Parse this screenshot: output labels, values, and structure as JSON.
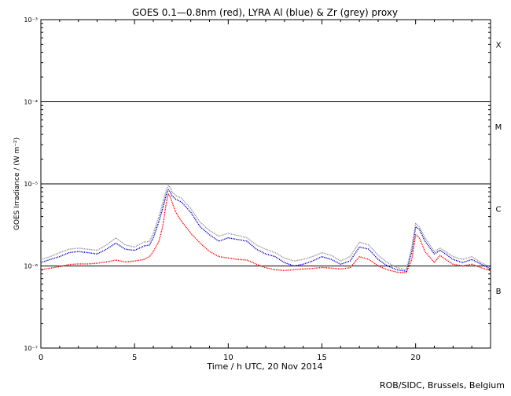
{
  "chart_data": {
    "type": "line",
    "title": "GOES 0.1—0.8nm (red), LYRA Al (blue) & Zr (grey) proxy",
    "xlabel": "Time / h UTC, 20 Nov 2014",
    "ylabel": "GOES Irradiance / (W m⁻²)",
    "xlim": [
      0,
      24
    ],
    "ylim": [
      1e-07,
      0.001
    ],
    "yscale": "log",
    "x_ticks": [
      0,
      5,
      10,
      15,
      20
    ],
    "y_ticks": [
      {
        "value": 1e-07,
        "label": "10⁻⁷"
      },
      {
        "value": 1e-06,
        "label": "10⁻⁶"
      },
      {
        "value": 1e-05,
        "label": "10⁻⁵"
      },
      {
        "value": 0.0001,
        "label": "10⁻⁴"
      },
      {
        "value": 0.001,
        "label": "10⁻³"
      }
    ],
    "class_lines": [
      1e-06,
      1e-05,
      0.0001
    ],
    "class_labels": [
      {
        "label": "X",
        "y": 0.0005
      },
      {
        "label": "M",
        "y": 5e-05
      },
      {
        "label": "C",
        "y": 5e-06
      },
      {
        "label": "B",
        "y": 5e-07
      }
    ],
    "series": [
      {
        "color": "#ff0000",
        "x": [
          0,
          0.5,
          1,
          1.5,
          2,
          2.5,
          3,
          3.5,
          4,
          4.5,
          5,
          5.5,
          5.8,
          6,
          6.3,
          6.5,
          6.7,
          6.8,
          6.9,
          7,
          7.2,
          7.5,
          8,
          8.5,
          9,
          9.5,
          10,
          10.5,
          11,
          11.5,
          12,
          12.5,
          13,
          13.5,
          14,
          14.5,
          15,
          15.5,
          16,
          16.5,
          17,
          17.5,
          18,
          18.5,
          19,
          19.5,
          19.8,
          20,
          20.2,
          20.5,
          21,
          21.3,
          21.6,
          22,
          22.5,
          23,
          23.5,
          24
        ],
        "y": [
          9e-07,
          9.4e-07,
          9.8e-07,
          1.04e-06,
          1.06e-06,
          1.06e-06,
          1.08e-06,
          1.12e-06,
          1.18e-06,
          1.12e-06,
          1.15e-06,
          1.2e-06,
          1.3e-06,
          1.5e-06,
          2e-06,
          3e-06,
          6e-06,
          7.5e-06,
          7e-06,
          6e-06,
          4.5e-06,
          3.5e-06,
          2.5e-06,
          1.9e-06,
          1.5e-06,
          1.3e-06,
          1.25e-06,
          1.2e-06,
          1.18e-06,
          1.05e-06,
          9.5e-07,
          9e-07,
          8.8e-07,
          9e-07,
          9.2e-07,
          9.3e-07,
          9.6e-07,
          9.4e-07,
          9.2e-07,
          9.5e-07,
          1.3e-06,
          1.2e-06,
          1e-06,
          9e-07,
          8.4e-07,
          8.3e-07,
          1.2e-06,
          2.4e-06,
          2.2e-06,
          1.5e-06,
          1.1e-06,
          1.35e-06,
          1.2e-06,
          1.05e-06,
          1e-06,
          1.05e-06,
          9.5e-07,
          8.8e-07
        ]
      },
      {
        "color": "#0000cc",
        "x": [
          0,
          0.5,
          1,
          1.5,
          2,
          2.5,
          3,
          3.5,
          4,
          4.5,
          5,
          5.5,
          5.8,
          6,
          6.3,
          6.5,
          6.7,
          6.8,
          6.9,
          7,
          7.2,
          7.5,
          8,
          8.5,
          9,
          9.5,
          10,
          10.5,
          11,
          11.5,
          12,
          12.5,
          13,
          13.5,
          14,
          14.5,
          15,
          15.5,
          16,
          16.5,
          17,
          17.5,
          18,
          18.5,
          19,
          19.5,
          19.8,
          20,
          20.2,
          20.5,
          21,
          21.3,
          21.6,
          22,
          22.5,
          23,
          23.5,
          24
        ],
        "y": [
          1.1e-06,
          1.2e-06,
          1.3e-06,
          1.45e-06,
          1.5e-06,
          1.45e-06,
          1.4e-06,
          1.6e-06,
          1.9e-06,
          1.6e-06,
          1.55e-06,
          1.75e-06,
          1.8e-06,
          2.2e-06,
          3.5e-06,
          5e-06,
          7.5e-06,
          8.5e-06,
          8e-06,
          7.2e-06,
          6.5e-06,
          6e-06,
          4.5e-06,
          3e-06,
          2.4e-06,
          2e-06,
          2.2e-06,
          2.1e-06,
          2e-06,
          1.6e-06,
          1.4e-06,
          1.3e-06,
          1.1e-06,
          1e-06,
          1.05e-06,
          1.15e-06,
          1.3e-06,
          1.2e-06,
          1.05e-06,
          1.15e-06,
          1.7e-06,
          1.6e-06,
          1.2e-06,
          1e-06,
          9e-07,
          8.6e-07,
          1.5e-06,
          3e-06,
          2.8e-06,
          2e-06,
          1.4e-06,
          1.55e-06,
          1.4e-06,
          1.2e-06,
          1.1e-06,
          1.2e-06,
          1.05e-06,
          9.2e-07
        ]
      },
      {
        "color": "#909090",
        "x": [
          0,
          0.5,
          1,
          1.5,
          2,
          2.5,
          3,
          3.5,
          4,
          4.5,
          5,
          5.5,
          5.8,
          6,
          6.3,
          6.5,
          6.7,
          6.8,
          6.9,
          7,
          7.2,
          7.5,
          8,
          8.5,
          9,
          9.5,
          10,
          10.5,
          11,
          11.5,
          12,
          12.5,
          13,
          13.5,
          14,
          14.5,
          15,
          15.5,
          16,
          16.5,
          17,
          17.5,
          18,
          18.5,
          19,
          19.5,
          19.8,
          20,
          20.2,
          20.5,
          21,
          21.3,
          21.6,
          22,
          22.5,
          23,
          23.5,
          24
        ],
        "y": [
          1.2e-06,
          1.3e-06,
          1.45e-06,
          1.6e-06,
          1.65e-06,
          1.6e-06,
          1.55e-06,
          1.8e-06,
          2.2e-06,
          1.8e-06,
          1.7e-06,
          1.95e-06,
          2e-06,
          2.5e-06,
          4e-06,
          5.8e-06,
          8.5e-06,
          9.5e-06,
          9e-06,
          8e-06,
          7.2e-06,
          6.7e-06,
          5e-06,
          3.4e-06,
          2.7e-06,
          2.3e-06,
          2.5e-06,
          2.35e-06,
          2.2e-06,
          1.8e-06,
          1.6e-06,
          1.45e-06,
          1.25e-06,
          1.15e-06,
          1.2e-06,
          1.3e-06,
          1.45e-06,
          1.35e-06,
          1.15e-06,
          1.3e-06,
          1.95e-06,
          1.8e-06,
          1.35e-06,
          1.1e-06,
          9.6e-07,
          9e-07,
          1.7e-06,
          3.3e-06,
          3e-06,
          2.2e-06,
          1.5e-06,
          1.65e-06,
          1.5e-06,
          1.3e-06,
          1.2e-06,
          1.3e-06,
          1.1e-06,
          9.6e-07
        ]
      }
    ],
    "grid": false,
    "legend": "none"
  },
  "footer": {
    "credit": "ROB/SIDC, Brussels, Belgium"
  }
}
